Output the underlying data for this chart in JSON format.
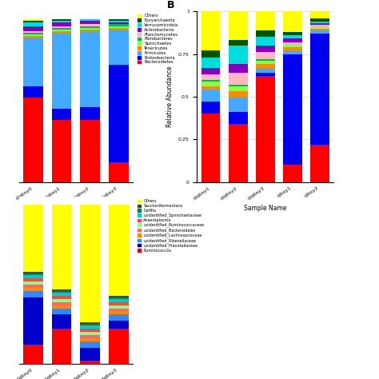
{
  "panel_A": {
    "samples": [
      "qlqbsy0",
      "qlqbsy1",
      "qlqbsy2",
      "qlqbsy3"
    ],
    "categories": [
      "Bacteroidetes",
      "Proteobacteria",
      "Firmicutes",
      "Tenericutes",
      "Spirochaetes",
      "Fibrobacteres",
      "Planctomycetes",
      "Actinobacteria",
      "Verrucomicrobia",
      "Euryarchaeota",
      "Others"
    ],
    "colors": [
      "#FF0000",
      "#0000EE",
      "#44AAFF",
      "#FF8C00",
      "#88FF44",
      "#00BB44",
      "#FFB6C1",
      "#8800BB",
      "#00DDDD",
      "#005500",
      "#FFFF00"
    ],
    "data": {
      "Bacteroidetes": [
        0.52,
        0.38,
        0.38,
        0.12
      ],
      "Proteobacteria": [
        0.07,
        0.07,
        0.08,
        0.6
      ],
      "Firmicutes": [
        0.3,
        0.47,
        0.47,
        0.22
      ],
      "Tenericutes": [
        0.01,
        0.01,
        0.01,
        0.01
      ],
      "Spirochaetes": [
        0.01,
        0.01,
        0.01,
        0.01
      ],
      "Fibrobacteres": [
        0.01,
        0.01,
        0.01,
        0.01
      ],
      "Planctomycetes": [
        0.01,
        0.01,
        0.01,
        0.0
      ],
      "Actinobacteria": [
        0.03,
        0.02,
        0.02,
        0.01
      ],
      "Verrucomicrobia": [
        0.02,
        0.01,
        0.01,
        0.01
      ],
      "Euryarchaeota": [
        0.01,
        0.01,
        0.0,
        0.01
      ],
      "Others": [
        0.01,
        0.0,
        0.0,
        0.0
      ]
    },
    "legend_labels": [
      "Others",
      "Euryarchaeota",
      "Verrucomicrobia",
      "Actinobacteria",
      "Planctomycetes",
      "Fibrobacteres",
      "Spirochaetes",
      "Tenericutes",
      "Firmicutes",
      "Proteobacteria",
      "Bacteroidetes"
    ]
  },
  "panel_B": {
    "samples": [
      "qlqbsy1",
      "qlqbsy2",
      "qlqbsy3",
      "qlbsy1",
      "qlbsy2"
    ],
    "categories": [
      "Bacteroidetes",
      "Proteobacteria",
      "Firmicutes",
      "Tenericutes",
      "Spirochaetes",
      "Fibrobacteres",
      "Planctomycetes",
      "Actinobacteria",
      "Verrucomicrobia",
      "Euryarchaeota",
      "Others"
    ],
    "colors": [
      "#FF0000",
      "#0000EE",
      "#44AAFF",
      "#FF8C00",
      "#88FF44",
      "#00BB44",
      "#FFB6C1",
      "#8800BB",
      "#00DDDD",
      "#005500",
      "#FFFF00"
    ],
    "data": {
      "Bacteroidetes": [
        0.4,
        0.34,
        0.62,
        0.1,
        0.22
      ],
      "Proteobacteria": [
        0.07,
        0.07,
        0.02,
        0.65,
        0.65
      ],
      "Firmicutes": [
        0.07,
        0.09,
        0.03,
        0.02,
        0.02
      ],
      "Tenericutes": [
        0.02,
        0.03,
        0.02,
        0.02,
        0.01
      ],
      "Spirochaetes": [
        0.03,
        0.03,
        0.02,
        0.02,
        0.01
      ],
      "Fibrobacteres": [
        0.01,
        0.01,
        0.01,
        0.0,
        0.0
      ],
      "Planctomycetes": [
        0.03,
        0.07,
        0.04,
        0.01,
        0.01
      ],
      "Actinobacteria": [
        0.04,
        0.05,
        0.04,
        0.02,
        0.01
      ],
      "Verrucomicrobia": [
        0.06,
        0.11,
        0.05,
        0.02,
        0.01
      ],
      "Euryarchaeota": [
        0.04,
        0.03,
        0.04,
        0.02,
        0.02
      ],
      "Others": [
        0.23,
        0.17,
        0.11,
        0.12,
        0.04
      ]
    }
  },
  "panel_C": {
    "samples": [
      "qlqbsy0",
      "qlqbsy1",
      "qlqbsy2",
      "qlqbsy3"
    ],
    "categories": [
      "Ruminococcus",
      "unidentified_Prevotellaceae",
      "unidentified_Rikenellaceae",
      "unidentified_Lachnospiraceae",
      "unidentified_Bacteroidales",
      "unidentified_Ruminococcaceae",
      "Anaeroplasma",
      "unidentified_Spirochaetaceae",
      "Deflfia",
      "Saccharifermentans",
      "Others"
    ],
    "colors": [
      "#FF0000",
      "#0000CC",
      "#3388FF",
      "#FF8C00",
      "#FF6666",
      "#88FF88",
      "#FF4444",
      "#00CCCC",
      "#008833",
      "#444444",
      "#FFFF00"
    ],
    "data": {
      "Ruminococcus": [
        0.12,
        0.22,
        0.02,
        0.22
      ],
      "unidentified_Prevotellaceae": [
        0.3,
        0.09,
        0.08,
        0.05
      ],
      "unidentified_Rikenellaceae": [
        0.04,
        0.04,
        0.04,
        0.04
      ],
      "unidentified_Lachnospiraceae": [
        0.02,
        0.02,
        0.02,
        0.02
      ],
      "unidentified_Bacteroidales": [
        0.02,
        0.02,
        0.02,
        0.02
      ],
      "unidentified_Ruminococcaceae": [
        0.02,
        0.02,
        0.02,
        0.02
      ],
      "Anaeroplasma": [
        0.02,
        0.02,
        0.02,
        0.02
      ],
      "unidentified_Spirochaetaceae": [
        0.02,
        0.02,
        0.02,
        0.02
      ],
      "Deflfia": [
        0.01,
        0.01,
        0.01,
        0.01
      ],
      "Saccharifermentans": [
        0.01,
        0.01,
        0.01,
        0.01
      ],
      "Others": [
        0.42,
        0.53,
        0.74,
        0.57
      ]
    },
    "legend_labels": [
      "Others",
      "Saccharifermentans",
      "Deflfia",
      "unidentified_Spirochaetaceae",
      "Anaeroplasma",
      "unidentified_Ruminococcaceae",
      "unidentified_Bacteroidales",
      "unidentified_Lachnospiraceae",
      "unidentified_Rikenellaceae",
      "unidentified_Prevotellaceae",
      "Ruminococcus"
    ]
  }
}
